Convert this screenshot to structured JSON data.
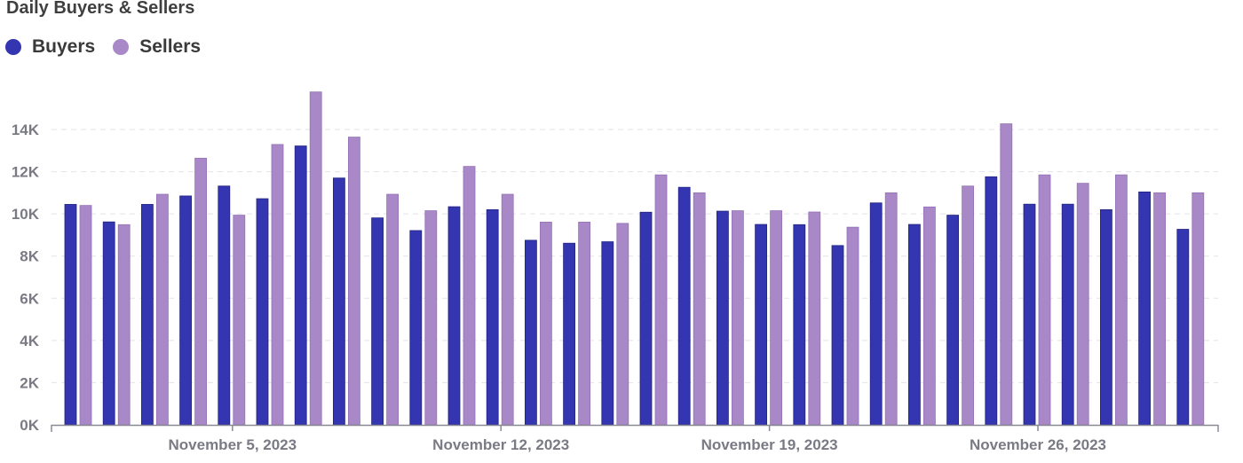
{
  "chart_data": {
    "type": "bar",
    "title": "Daily Buyers & Sellers",
    "xlabel": "",
    "ylabel": "",
    "ylim": [
      0,
      15000
    ],
    "yticks": [
      0,
      2000,
      4000,
      6000,
      8000,
      10000,
      12000,
      14000
    ],
    "ytick_labels": [
      "0K",
      "2K",
      "4K",
      "6K",
      "8K",
      "10K",
      "12K",
      "14K"
    ],
    "x_tick_labels": [
      {
        "label": "November 5, 2023",
        "index": 4
      },
      {
        "label": "November 12, 2023",
        "index": 11
      },
      {
        "label": "November 19, 2023",
        "index": 18
      },
      {
        "label": "November 26, 2023",
        "index": 25
      }
    ],
    "categories": [
      "2023-11-01",
      "2023-11-02",
      "2023-11-03",
      "2023-11-04",
      "2023-11-05",
      "2023-11-06",
      "2023-11-07",
      "2023-11-08",
      "2023-11-09",
      "2023-11-10",
      "2023-11-11",
      "2023-11-12",
      "2023-11-13",
      "2023-11-14",
      "2023-11-15",
      "2023-11-16",
      "2023-11-17",
      "2023-11-18",
      "2023-11-19",
      "2023-11-20",
      "2023-11-21",
      "2023-11-22",
      "2023-11-23",
      "2023-11-24",
      "2023-11-25",
      "2023-11-26",
      "2023-11-27",
      "2023-11-28",
      "2023-11-29",
      "2023-11-30",
      "2023-12-01"
    ],
    "grid": true,
    "legend_position": "top-left",
    "series": [
      {
        "name": "Buyers",
        "color": "#3435b0",
        "values": [
          10450,
          9620,
          10450,
          10850,
          11320,
          10720,
          13220,
          11700,
          9810,
          9210,
          10340,
          10200,
          8750,
          8610,
          8680,
          10080,
          11260,
          10130,
          9500,
          9490,
          8500,
          10520,
          9500,
          9940,
          11760,
          10460,
          10460,
          10200,
          11040,
          9270,
          null
        ]
      },
      {
        "name": "Sellers",
        "color": "#a888c6",
        "values": [
          10400,
          9490,
          10930,
          12640,
          9940,
          13290,
          15780,
          13640,
          10930,
          10150,
          12250,
          10930,
          9610,
          9610,
          9550,
          11850,
          11000,
          10150,
          10150,
          10090,
          9370,
          11000,
          10330,
          11320,
          14270,
          11850,
          11450,
          11850,
          11000,
          11000,
          null
        ]
      }
    ]
  }
}
